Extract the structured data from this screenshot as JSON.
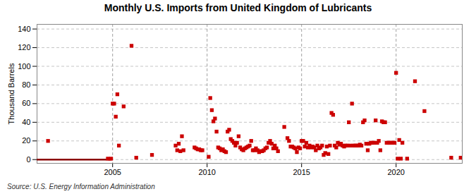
{
  "chart_data": {
    "type": "scatter",
    "title": "Monthly U.S. Imports from United Kingdom of Lubricants",
    "ylabel": "Thousand Barrels",
    "source": "Source: U.S. Energy Information Administration",
    "xlim": [
      2001.0,
      2023.5
    ],
    "ylim": [
      -4,
      145
    ],
    "xticks": [
      2005,
      2010,
      2015,
      2020
    ],
    "yticks": [
      0,
      20,
      40,
      60,
      80,
      100,
      120,
      140
    ],
    "grid": true,
    "series": [
      {
        "type": "line",
        "color": "#8b0000",
        "x": [
          2001.0,
          2004.667
        ],
        "values": [
          0,
          0
        ]
      },
      {
        "type": "line",
        "color": "#8b0000",
        "x": [
          2004.75,
          2004.917
        ],
        "values": [
          0,
          0
        ]
      },
      {
        "type": "scatter",
        "marker": "square",
        "color": "#cc0000",
        "x": [
          2001.583,
          2004.75,
          2004.917,
          2005.0,
          2005.083,
          2005.167,
          2005.25,
          2005.333,
          2005.583,
          2006.0,
          2006.25,
          2007.083,
          2008.333,
          2008.417,
          2008.5,
          2008.583,
          2008.667,
          2008.75,
          2009.333,
          2009.417,
          2009.5,
          2009.583,
          2009.667,
          2009.75,
          2010.083,
          2010.167,
          2010.25,
          2010.333,
          2010.417,
          2010.5,
          2010.583,
          2010.667,
          2010.75,
          2010.833,
          2010.917,
          2011.0,
          2011.083,
          2011.167,
          2011.25,
          2011.333,
          2011.417,
          2011.5,
          2011.583,
          2011.667,
          2011.75,
          2011.833,
          2011.917,
          2012.0,
          2012.083,
          2012.167,
          2012.25,
          2012.333,
          2012.417,
          2012.5,
          2012.583,
          2012.667,
          2012.75,
          2012.833,
          2012.917,
          2013.0,
          2013.083,
          2013.167,
          2013.25,
          2013.333,
          2013.417,
          2013.5,
          2013.583,
          2013.667,
          2013.75,
          2014.083,
          2014.25,
          2014.333,
          2014.417,
          2014.5,
          2014.583,
          2014.667,
          2014.75,
          2014.833,
          2014.917,
          2015.0,
          2015.083,
          2015.167,
          2015.25,
          2015.333,
          2015.417,
          2015.5,
          2015.583,
          2015.667,
          2015.75,
          2015.833,
          2015.917,
          2016.0,
          2016.083,
          2016.167,
          2016.25,
          2016.333,
          2016.417,
          2016.5,
          2016.583,
          2016.667,
          2016.75,
          2016.833,
          2016.917,
          2017.0,
          2017.083,
          2017.167,
          2017.25,
          2017.333,
          2017.417,
          2017.5,
          2017.583,
          2017.667,
          2017.75,
          2017.833,
          2017.917,
          2018.0,
          2018.083,
          2018.167,
          2018.25,
          2018.333,
          2018.417,
          2018.5,
          2018.583,
          2018.667,
          2018.75,
          2018.833,
          2018.917,
          2019.0,
          2019.083,
          2019.167,
          2019.25,
          2019.333,
          2019.417,
          2019.5,
          2019.583,
          2019.667,
          2019.75,
          2019.833,
          2019.917,
          2020.0,
          2020.083,
          2020.167,
          2020.25,
          2020.333,
          2020.583,
          2021.0,
          2021.5,
          2022.917,
          2023.417
        ],
        "values": [
          20,
          1,
          1,
          60,
          60,
          46,
          70,
          15,
          57,
          122,
          2,
          5,
          15,
          10,
          17,
          9,
          25,
          10,
          13,
          12,
          11,
          11,
          10,
          10,
          3,
          66,
          53,
          41,
          44,
          30,
          13,
          12,
          10,
          11,
          9,
          8,
          30,
          32,
          22,
          20,
          18,
          15,
          18,
          25,
          13,
          11,
          10,
          12,
          13,
          14,
          15,
          20,
          10,
          10,
          12,
          10,
          8,
          9,
          9,
          10,
          12,
          13,
          18,
          20,
          17,
          12,
          15,
          12,
          9,
          35,
          23,
          20,
          14,
          14,
          13,
          12,
          8,
          13,
          12,
          20,
          20,
          14,
          18,
          13,
          15,
          13,
          14,
          13,
          10,
          15,
          12,
          13,
          15,
          5,
          7,
          14,
          6,
          15,
          50,
          48,
          15,
          13,
          18,
          16,
          17,
          15,
          14,
          15,
          15,
          40,
          15,
          60,
          15,
          15,
          15,
          15,
          16,
          15,
          40,
          42,
          17,
          10,
          17,
          18,
          18,
          18,
          42,
          18,
          20,
          10,
          41,
          40,
          40,
          18,
          18,
          18,
          18,
          18,
          18,
          93,
          1,
          21,
          1,
          18,
          1,
          84,
          52,
          2,
          2
        ]
      }
    ]
  }
}
